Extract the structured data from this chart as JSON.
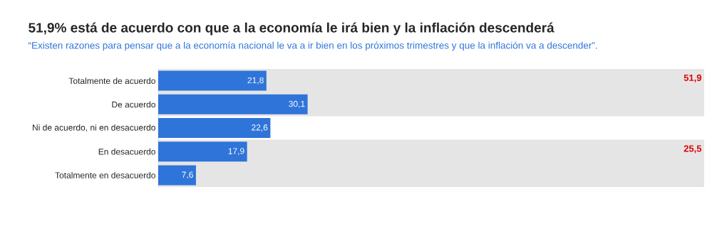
{
  "chart_data": {
    "type": "bar",
    "orientation": "horizontal",
    "title": "51,9% está de acuerdo con que a la economía le irá bien y la inflación descenderá",
    "subtitle": "“Existen razones para pensar que a la economía nacional le va a ir bien en los próximos trimestres y que la inflación va a descender”.",
    "categories": [
      "Totalmente de acuerdo",
      "De acuerdo",
      "Ni de acuerdo, ni en desacuerdo",
      "En desacuerdo",
      "Totalmente en desacuerdo"
    ],
    "values": [
      21.8,
      30.1,
      22.6,
      17.9,
      7.6
    ],
    "value_labels": [
      "21,8",
      "30,1",
      "22,6",
      "17,9",
      "7,6"
    ],
    "color": "#2f74d9",
    "xlim": [
      0,
      110
    ],
    "tick_labels": "y",
    "bands": [
      {
        "axis": "y",
        "from": "Totalmente de acuerdo",
        "to": "De acuerdo",
        "label": "51,9",
        "color": "#e5e5e5"
      },
      {
        "axis": "y",
        "from": "En desacuerdo",
        "to": "Totalmente en desacuerdo",
        "label": "25,5",
        "color": "#e5e5e5"
      }
    ]
  }
}
